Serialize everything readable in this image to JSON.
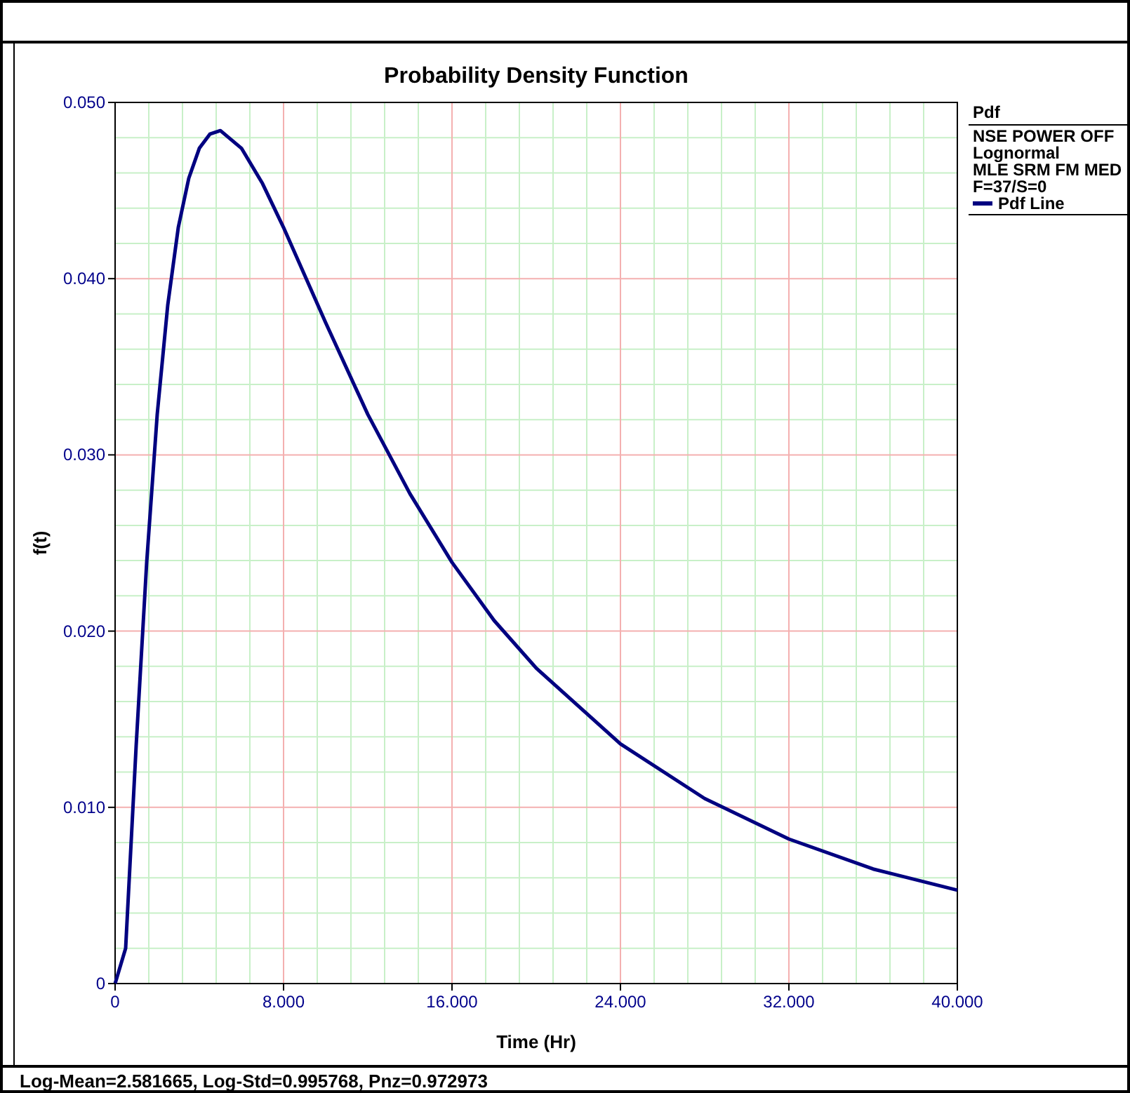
{
  "chart_data": {
    "type": "line",
    "title": "Probability Density Function",
    "xlabel": "Time (Hr)",
    "ylabel": "f(t)",
    "legend_title": "Pdf",
    "annotations": [
      "NSE POWER OFF",
      "Lognormal",
      "MLE SRM FM MED",
      "F=37/S=0",
      "Log-Mean=2.581665, Log-Std=0.995768, Pnz=0.972973"
    ],
    "x": [
      0,
      0.5,
      1,
      1.5,
      2,
      2.5,
      3,
      3.5,
      4,
      4.5,
      5,
      6,
      7,
      8,
      10,
      12,
      14,
      16,
      18,
      20,
      24,
      28,
      32,
      36,
      40
    ],
    "series": [
      {
        "name": "Pdf Line",
        "color": "#000080",
        "values": [
          0,
          0.002,
          0.0135,
          0.0239,
          0.0323,
          0.0385,
          0.0429,
          0.0457,
          0.0474,
          0.0482,
          0.0484,
          0.0474,
          0.0454,
          0.0429,
          0.0375,
          0.0323,
          0.0278,
          0.0239,
          0.0206,
          0.0179,
          0.0136,
          0.0105,
          0.0082,
          0.0065,
          0.0053
        ]
      }
    ],
    "xlim": [
      0,
      40
    ],
    "ylim": [
      0,
      0.05
    ],
    "xticks": [
      0,
      {
        "value": 8,
        "label": "8.000"
      },
      {
        "value": 16,
        "label": "16.000"
      },
      {
        "value": 24,
        "label": "24.000"
      },
      {
        "value": 32,
        "label": "32.000"
      },
      {
        "value": 40,
        "label": "40.000"
      }
    ],
    "yticks": [
      0,
      {
        "value": 0.01,
        "label": "0.010"
      },
      {
        "value": 0.02,
        "label": "0.020"
      },
      {
        "value": 0.03,
        "label": "0.030"
      },
      {
        "value": 0.04,
        "label": "0.040"
      },
      {
        "value": 0.05,
        "label": "0.050"
      }
    ],
    "grid": true,
    "legend": "top right",
    "marker": "none",
    "line_style": "solid"
  }
}
